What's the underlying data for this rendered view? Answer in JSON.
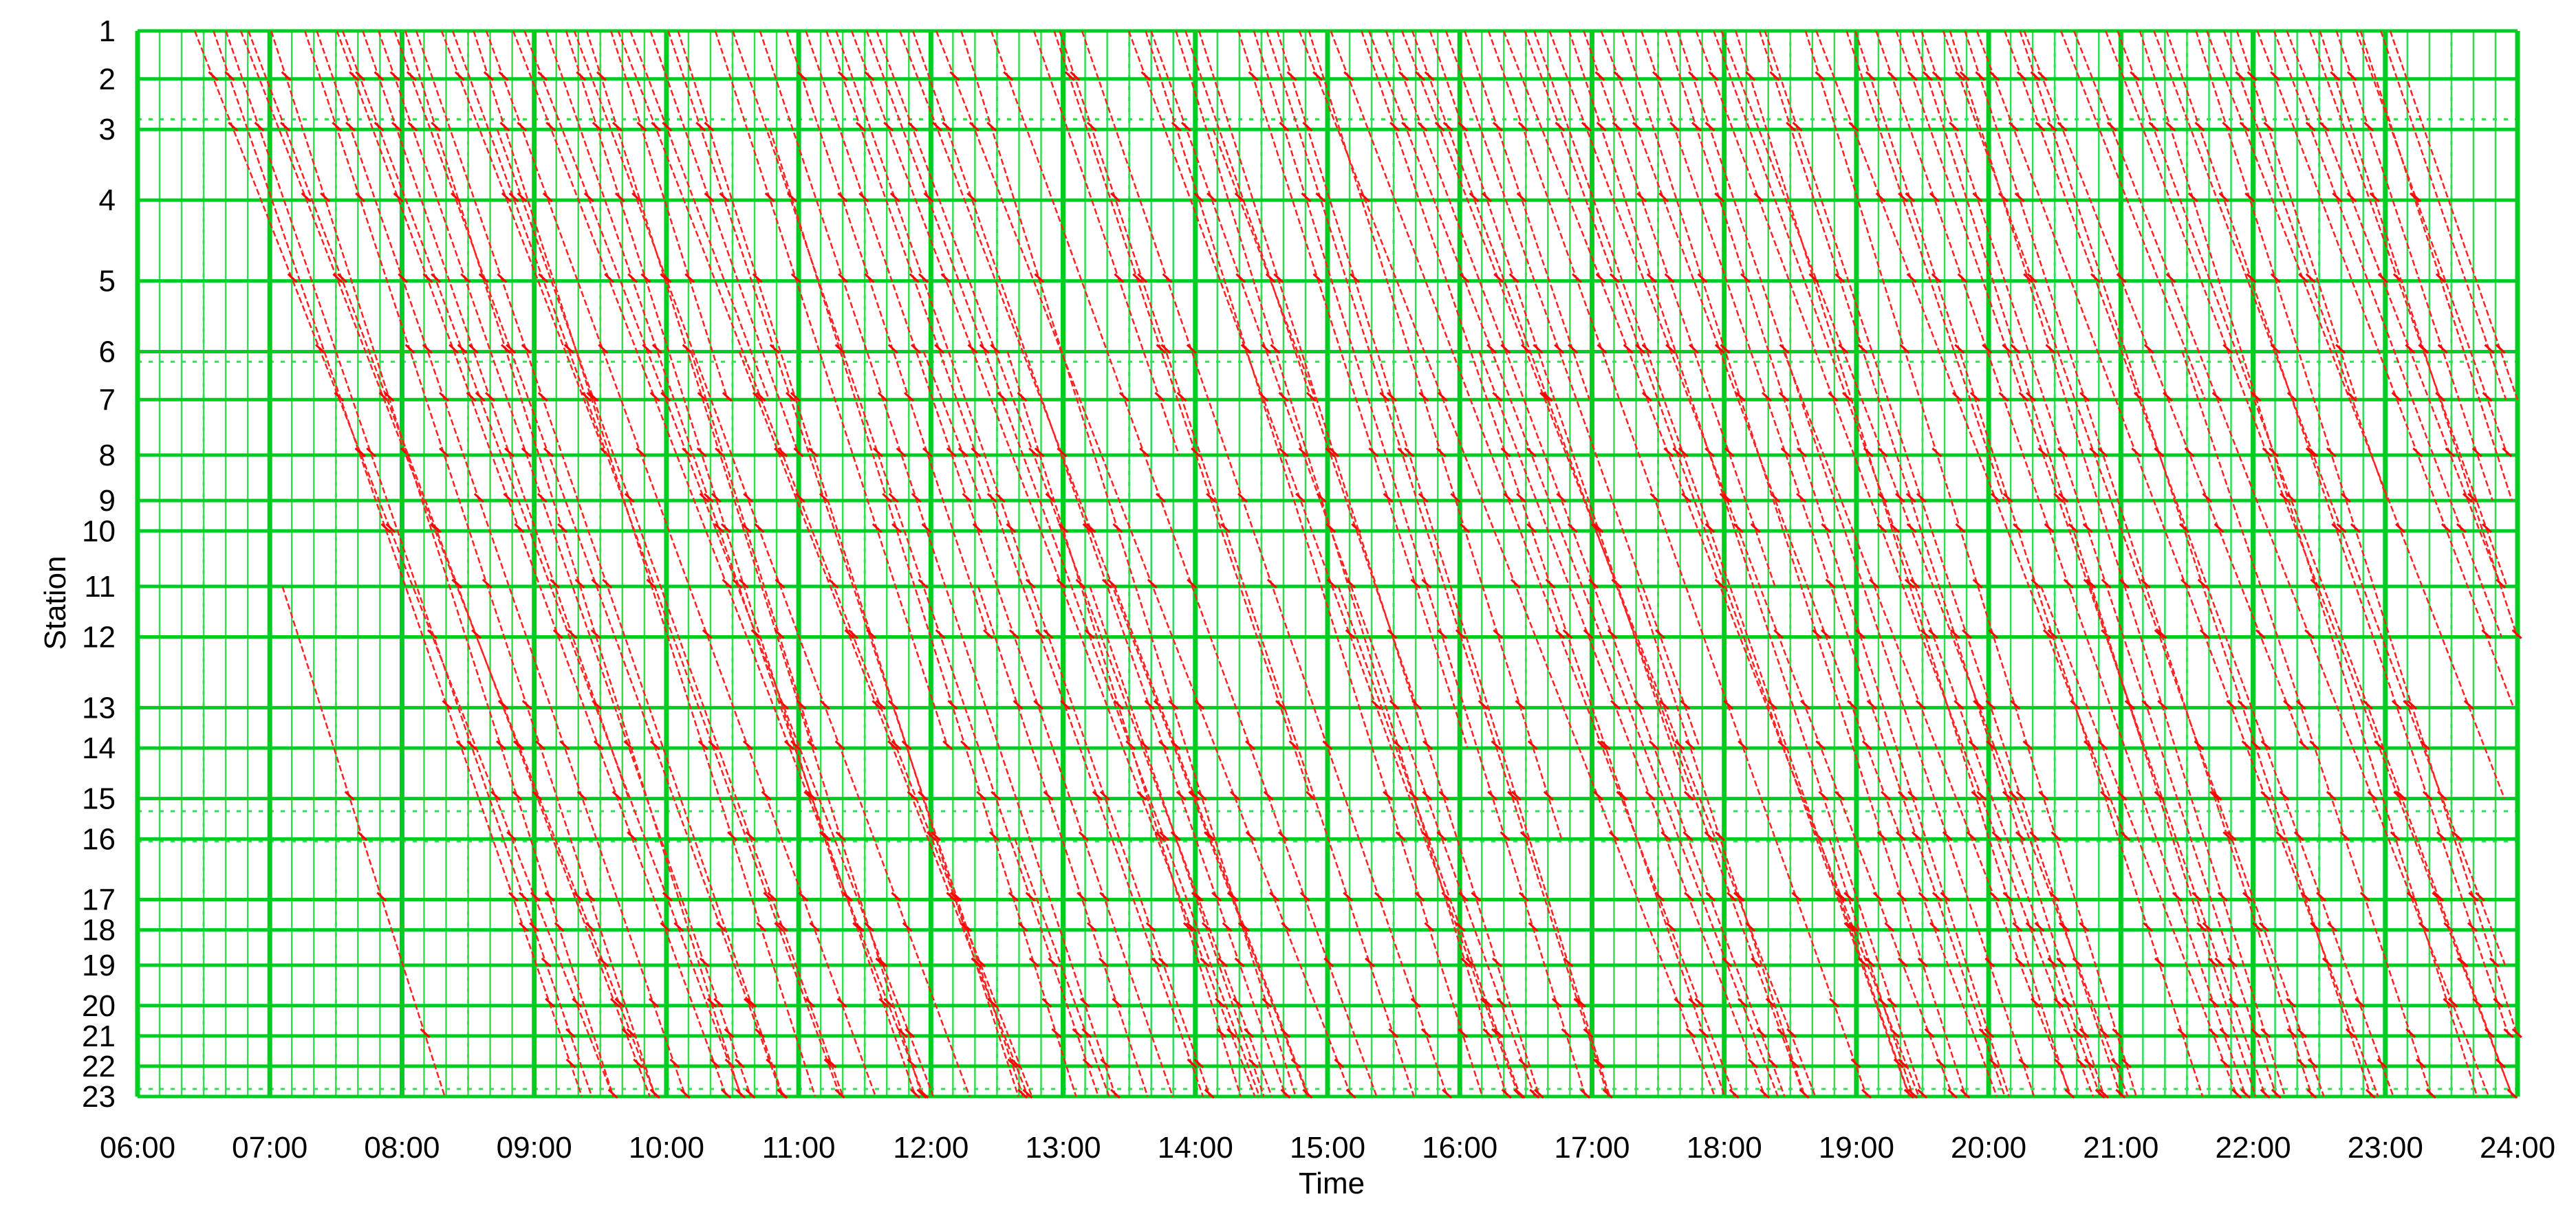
{
  "chart_data": {
    "type": "line",
    "title": "",
    "xlabel": "Time",
    "ylabel": "Station",
    "x_ticks": [
      "06:00",
      "07:00",
      "08:00",
      "09:00",
      "10:00",
      "11:00",
      "12:00",
      "13:00",
      "14:00",
      "15:00",
      "16:00",
      "17:00",
      "18:00",
      "19:00",
      "20:00",
      "21:00",
      "22:00",
      "23:00",
      "24:00"
    ],
    "xlim": [
      "06:00",
      "24:00"
    ],
    "stations": [
      "1",
      "2",
      "3",
      "4",
      "5",
      "6",
      "7",
      "8",
      "9",
      "10",
      "11",
      "12",
      "13",
      "14",
      "15",
      "16",
      "17",
      "18",
      "19",
      "20",
      "21",
      "22",
      "23"
    ],
    "station_positions": [
      0,
      0.95,
      1.95,
      3.35,
      4.95,
      6.35,
      7.3,
      8.4,
      9.3,
      9.9,
      11.0,
      12.0,
      13.4,
      14.2,
      15.2,
      16.0,
      17.2,
      17.8,
      18.5,
      19.3,
      19.9,
      20.5,
      21.1
    ],
    "ylim": [
      0,
      21.1
    ],
    "grid": "on",
    "colors": {
      "grid_major": "#00cc22",
      "grid_minor": "#33dd55",
      "train_line": "#ff2222",
      "train_label": "#ff0000",
      "axis_text": "#000000"
    },
    "trips": {
      "direction": "down",
      "first_departure": "06:25",
      "last_departure": "23:05",
      "count": 145
    }
  }
}
